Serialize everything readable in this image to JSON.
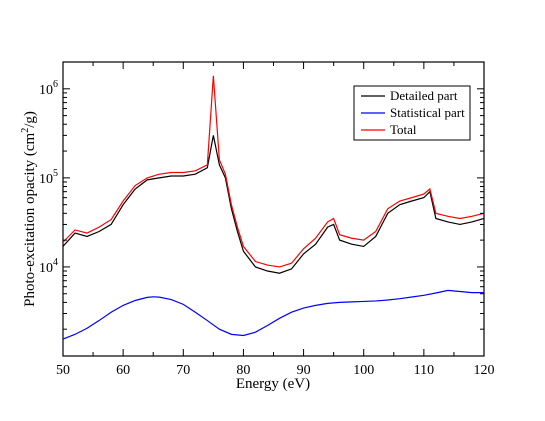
{
  "chart_data": {
    "type": "line",
    "title": "",
    "xlabel": "Energy (eV)",
    "ylabel_main": "Photo-excitation opacity (cm",
    "ylabel_sup": "2",
    "ylabel_end": "/g)",
    "xlim": [
      50,
      120
    ],
    "ylim": [
      1000,
      2000000
    ],
    "yscale": "log",
    "grid": false,
    "legend_position": "top-right",
    "x_ticks": [
      50,
      60,
      70,
      80,
      90,
      100,
      110,
      120
    ],
    "y_ticks": [
      {
        "value": 10000,
        "base": "10",
        "exp": "4"
      },
      {
        "value": 100000,
        "base": "10",
        "exp": "5"
      },
      {
        "value": 1000000,
        "base": "10",
        "exp": "6"
      }
    ],
    "series": [
      {
        "name": "Detailed part",
        "color": "#000000",
        "x": [
          50,
          52,
          54,
          56,
          58,
          60,
          62,
          64,
          66,
          68,
          70,
          72,
          74,
          75,
          76,
          77,
          78,
          79,
          80,
          82,
          84,
          86,
          88,
          90,
          92,
          94,
          95,
          96,
          98,
          100,
          102,
          104,
          106,
          108,
          110,
          111,
          112,
          114,
          116,
          118,
          120
        ],
        "y": [
          17000,
          24000,
          22000,
          25000,
          30000,
          50000,
          75000,
          95000,
          100000,
          105000,
          105000,
          110000,
          130000,
          300000,
          140000,
          100000,
          45000,
          25000,
          15000,
          10000,
          9000,
          8500,
          9500,
          14000,
          18000,
          28000,
          30000,
          20000,
          18000,
          17000,
          22000,
          40000,
          50000,
          55000,
          60000,
          70000,
          35000,
          32000,
          30000,
          32000,
          35000
        ]
      },
      {
        "name": "Statistical part",
        "color": "#0000ff",
        "x": [
          50,
          52,
          54,
          56,
          58,
          60,
          62,
          64,
          65,
          66,
          68,
          70,
          72,
          74,
          76,
          78,
          80,
          82,
          84,
          86,
          88,
          90,
          92,
          94,
          96,
          98,
          100,
          102,
          104,
          106,
          108,
          110,
          112,
          114,
          116,
          118,
          120
        ],
        "y": [
          1550,
          1750,
          2050,
          2500,
          3100,
          3700,
          4200,
          4550,
          4620,
          4580,
          4300,
          3800,
          3100,
          2500,
          2000,
          1750,
          1700,
          1850,
          2200,
          2650,
          3100,
          3450,
          3700,
          3900,
          4000,
          4050,
          4100,
          4150,
          4250,
          4400,
          4600,
          4800,
          5100,
          5450,
          5300,
          5150,
          5150
        ]
      },
      {
        "name": "Total",
        "color": "#ff0000",
        "x": [
          50,
          52,
          54,
          56,
          58,
          60,
          62,
          64,
          66,
          68,
          70,
          72,
          74,
          75,
          76,
          77,
          78,
          79,
          80,
          82,
          84,
          86,
          88,
          90,
          92,
          94,
          95,
          96,
          98,
          100,
          102,
          104,
          106,
          108,
          110,
          111,
          112,
          114,
          116,
          118,
          120
        ],
        "y": [
          19000,
          26000,
          24000,
          28000,
          34000,
          55000,
          82000,
          100000,
          110000,
          115000,
          115000,
          120000,
          140000,
          1400000,
          160000,
          110000,
          50000,
          28000,
          17000,
          11500,
          10500,
          10000,
          11000,
          16000,
          21000,
          32000,
          35000,
          23000,
          21000,
          20000,
          25000,
          45000,
          55000,
          60000,
          66000,
          75000,
          40000,
          37000,
          35000,
          37000,
          40000
        ]
      }
    ]
  }
}
